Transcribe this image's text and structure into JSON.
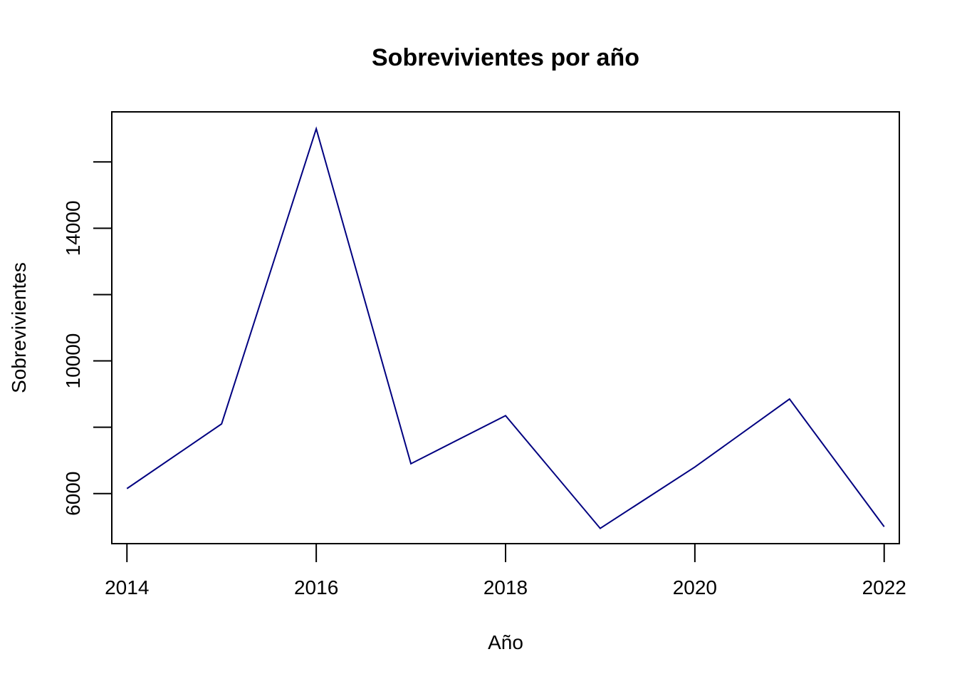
{
  "chart_data": {
    "type": "line",
    "title": "Sobrevivientes por año",
    "xlabel": "Año",
    "ylabel": "Sobrevivientes",
    "x": [
      2014,
      2015,
      2016,
      2017,
      2018,
      2019,
      2020,
      2021,
      2022
    ],
    "series": [
      {
        "values": [
          6150,
          8100,
          17000,
          6900,
          8350,
          4950,
          6800,
          8850,
          5000
        ]
      }
    ],
    "xlim": [
      2013.84,
      2022.16
    ],
    "ylim": [
      4490,
      17510
    ],
    "x_ticks": [
      2014,
      2016,
      2018,
      2020,
      2022
    ],
    "y_ticks": [
      6000,
      8000,
      10000,
      12000,
      14000,
      16000
    ],
    "y_tick_labels": [
      "6000",
      "",
      "10000",
      "",
      "14000",
      ""
    ],
    "line_color": "#000080",
    "grid": false
  }
}
